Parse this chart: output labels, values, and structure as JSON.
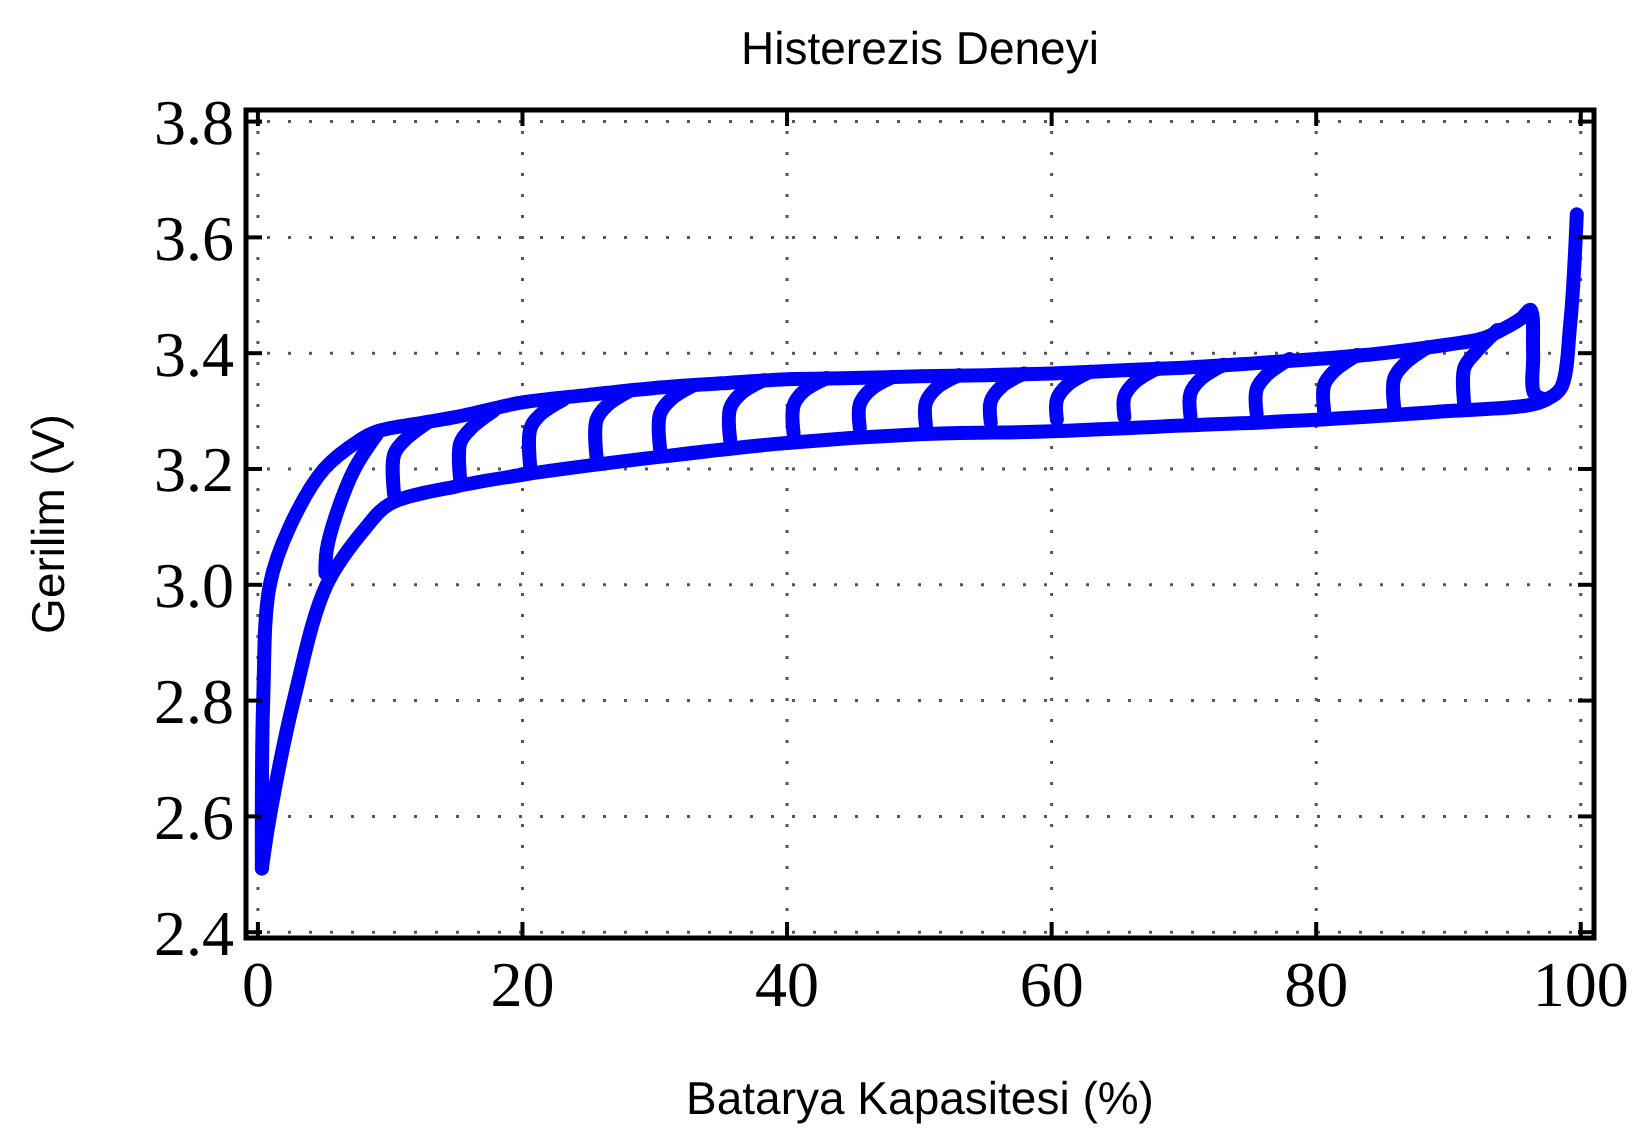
{
  "chart_data": {
    "type": "line",
    "title": "Histerezis Deneyi",
    "xlabel": "Batarya Kapasitesi (%)",
    "ylabel": "Gerilim (V)",
    "xlim": [
      -0.9,
      101
    ],
    "ylim": [
      2.39,
      3.82
    ],
    "xticks": [
      0,
      20,
      40,
      60,
      80,
      100
    ],
    "yticks": [
      {
        "value": 2.4,
        "label": "2.4"
      },
      2.6,
      2.8,
      {
        "value": 3.0,
        "label": "3.0"
      },
      3.2,
      3.4,
      3.6,
      3.8
    ],
    "grid": true,
    "line_style": "solid",
    "marker": "none",
    "series": [
      {
        "color": "#0000ff",
        "x": [
          0.3,
          0.4,
          0.9,
          2.4,
          5,
          7.7,
          9,
          12.5,
          15,
          20,
          25,
          30,
          35,
          40,
          45,
          50,
          55,
          60,
          65,
          70,
          75,
          80,
          85,
          90,
          92.5,
          94,
          95.5,
          96.2,
          96.4,
          96.5,
          97.4
        ],
        "values": [
          2.51,
          2.8,
          3.0,
          3.1,
          3.2,
          3.25,
          3.265,
          3.28,
          3.29,
          3.315,
          3.328,
          3.34,
          3.348,
          3.355,
          3.357,
          3.36,
          3.362,
          3.365,
          3.37,
          3.375,
          3.382,
          3.39,
          3.4,
          3.415,
          3.425,
          3.44,
          3.46,
          3.475,
          3.4,
          3.33,
          3.32
        ]
      },
      {
        "color": "#0000ff",
        "x": [
          0.3,
          0.9,
          2.7,
          5.2,
          8.2,
          10,
          15,
          20,
          30,
          40,
          50,
          60,
          70,
          80,
          90,
          96,
          97.4,
          98.5,
          99.2,
          99.7
        ],
        "values": [
          2.51,
          2.6,
          2.8,
          3.0,
          3.1,
          3.14,
          3.17,
          3.19,
          3.22,
          3.245,
          3.26,
          3.265,
          3.275,
          3.285,
          3.3,
          3.31,
          3.32,
          3.34,
          3.45,
          3.64
        ]
      },
      {
        "color": "#0000ff",
        "x": [
          5.1,
          5.2,
          5.9,
          7.3,
          9
        ],
        "values": [
          3.02,
          3.06,
          3.12,
          3.2,
          3.26
        ]
      },
      {
        "color": "#0000ff",
        "x": [
          10.3,
          10.3,
          11.1,
          12.8
        ],
        "values": [
          3.155,
          3.225,
          3.25,
          3.28
        ]
      },
      {
        "color": "#0000ff",
        "x": [
          15.3,
          15.3,
          16.1,
          17.8
        ],
        "values": [
          3.18,
          3.245,
          3.27,
          3.3
        ]
      },
      {
        "color": "#0000ff",
        "x": [
          20.6,
          20.6,
          21.4,
          23.1
        ],
        "values": [
          3.2,
          3.27,
          3.295,
          3.32
        ]
      },
      {
        "color": "#0000ff",
        "x": [
          25.6,
          25.6,
          26.4,
          28.1
        ],
        "values": [
          3.22,
          3.285,
          3.31,
          3.335
        ]
      },
      {
        "color": "#0000ff",
        "x": [
          30.4,
          30.4,
          31.2,
          32.9
        ],
        "values": [
          3.235,
          3.295,
          3.32,
          3.344
        ]
      },
      {
        "color": "#0000ff",
        "x": [
          35.7,
          35.7,
          36.5,
          38.2
        ],
        "values": [
          3.25,
          3.305,
          3.33,
          3.353
        ]
      },
      {
        "color": "#0000ff",
        "x": [
          40.5,
          40.5,
          41.3,
          43
        ],
        "values": [
          3.26,
          3.31,
          3.335,
          3.357
        ]
      },
      {
        "color": "#0000ff",
        "x": [
          45.5,
          45.5,
          46.3,
          48
        ],
        "values": [
          3.27,
          3.312,
          3.337,
          3.359
        ]
      },
      {
        "color": "#0000ff",
        "x": [
          50.5,
          50.5,
          51.3,
          53
        ],
        "values": [
          3.275,
          3.315,
          3.34,
          3.362
        ]
      },
      {
        "color": "#0000ff",
        "x": [
          55.4,
          55.4,
          56.2,
          57.9
        ],
        "values": [
          3.28,
          3.317,
          3.342,
          3.365
        ]
      },
      {
        "color": "#0000ff",
        "x": [
          60.4,
          60.4,
          61.2,
          62.9
        ],
        "values": [
          3.285,
          3.32,
          3.345,
          3.368
        ]
      },
      {
        "color": "#0000ff",
        "x": [
          65.5,
          65.5,
          66.3,
          68
        ],
        "values": [
          3.29,
          3.325,
          3.35,
          3.374
        ]
      },
      {
        "color": "#0000ff",
        "x": [
          70.5,
          70.5,
          71.3,
          73
        ],
        "values": [
          3.29,
          3.331,
          3.356,
          3.38
        ]
      },
      {
        "color": "#0000ff",
        "x": [
          75.5,
          75.5,
          76.3,
          78
        ],
        "values": [
          3.295,
          3.338,
          3.363,
          3.39
        ]
      },
      {
        "color": "#0000ff",
        "x": [
          80.6,
          80.6,
          81.4,
          83.1
        ],
        "values": [
          3.3,
          3.345,
          3.37,
          3.397
        ]
      },
      {
        "color": "#0000ff",
        "x": [
          85.9,
          85.9,
          86.7,
          88.4
        ],
        "values": [
          3.305,
          3.357,
          3.382,
          3.41
        ]
      },
      {
        "color": "#0000ff",
        "x": [
          91.2,
          91.2,
          92,
          93.7
        ],
        "values": [
          3.31,
          3.375,
          3.4,
          3.44
        ]
      }
    ]
  }
}
